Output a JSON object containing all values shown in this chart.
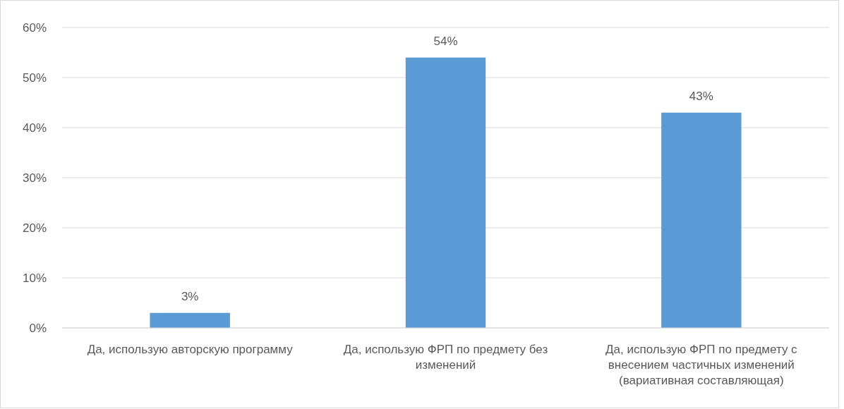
{
  "chart_data": {
    "type": "bar",
    "categories": [
      "Да, использую авторскую программу",
      "Да, использую ФРП по предмету без изменений",
      "Да, использую ФРП по предмету с внесением частичных изменений (вариативная составляющая)"
    ],
    "values": [
      3,
      54,
      43
    ],
    "color": "#5b9bd5",
    "value_labels": [
      "3%",
      "54%",
      "43%"
    ],
    "ylim": [
      0,
      60
    ],
    "yticks": [
      {
        "value": 0,
        "label": "0%"
      },
      {
        "value": 10,
        "label": "10%"
      },
      {
        "value": 20,
        "label": "20%"
      },
      {
        "value": 30,
        "label": "30%"
      },
      {
        "value": 40,
        "label": "40%"
      },
      {
        "value": 50,
        "label": "50%"
      },
      {
        "value": 60,
        "label": "60%"
      }
    ],
    "grid": "y"
  }
}
